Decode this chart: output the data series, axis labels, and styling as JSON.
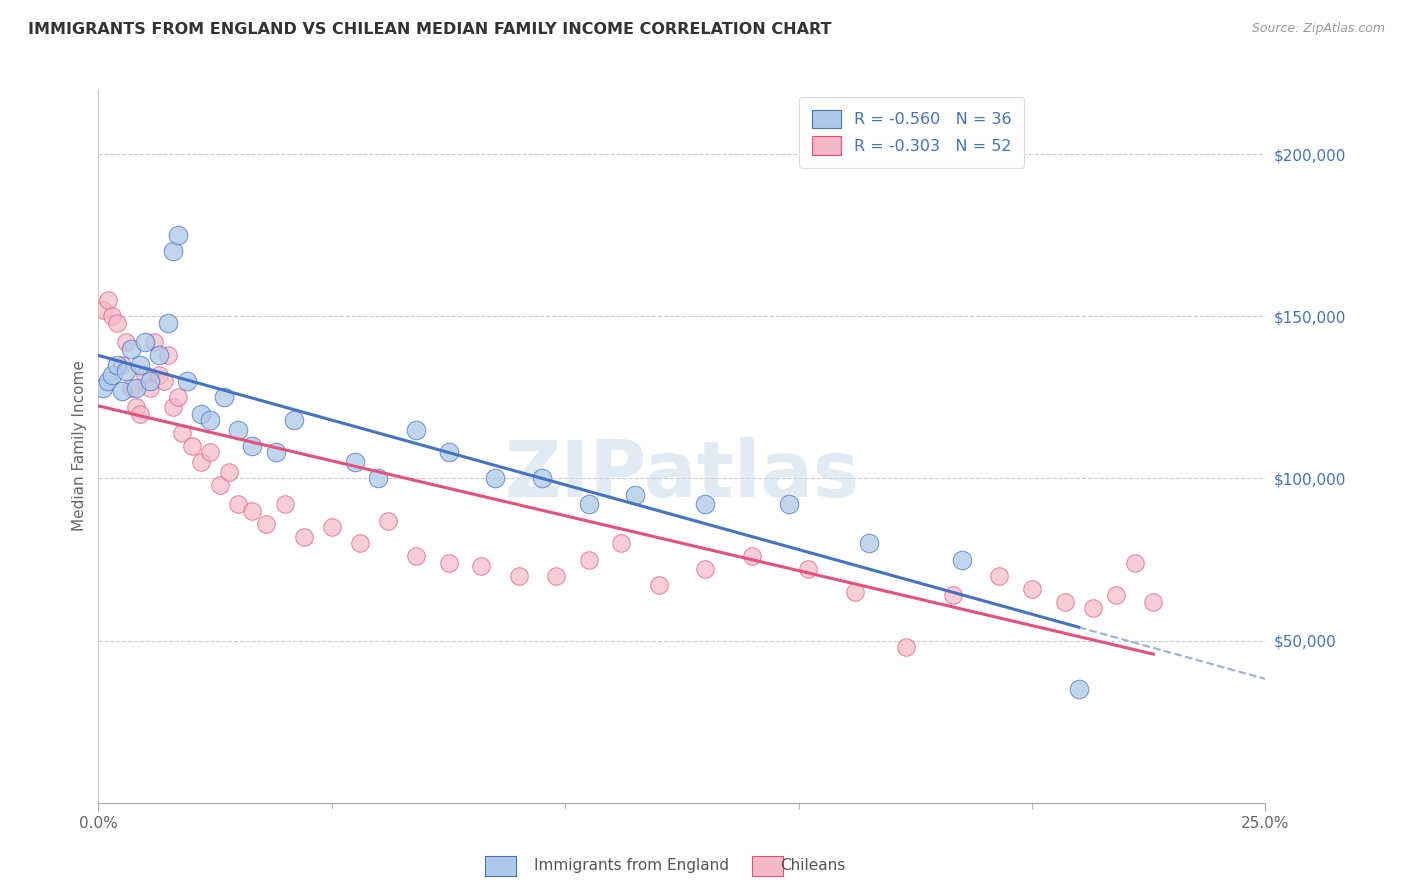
{
  "title": "IMMIGRANTS FROM ENGLAND VS CHILEAN MEDIAN FAMILY INCOME CORRELATION CHART",
  "source": "Source: ZipAtlas.com",
  "ylabel": "Median Family Income",
  "y_tick_labels": [
    "$50,000",
    "$100,000",
    "$150,000",
    "$200,000"
  ],
  "y_tick_values": [
    50000,
    100000,
    150000,
    200000
  ],
  "xlim": [
    0.0,
    0.25
  ],
  "ylim": [
    0,
    220000
  ],
  "legend_line1": "R = -0.560   N = 36",
  "legend_line2": "R = -0.303   N = 52",
  "color_england": "#adc8e8",
  "color_chilean": "#f5b8c8",
  "line_color_england": "#4472c4",
  "line_color_chilean": "#e8507a",
  "watermark": "ZIPatlas",
  "england_x": [
    0.001,
    0.002,
    0.003,
    0.004,
    0.005,
    0.006,
    0.007,
    0.008,
    0.009,
    0.01,
    0.011,
    0.013,
    0.015,
    0.016,
    0.017,
    0.019,
    0.022,
    0.024,
    0.027,
    0.03,
    0.033,
    0.038,
    0.042,
    0.055,
    0.06,
    0.068,
    0.075,
    0.085,
    0.095,
    0.105,
    0.115,
    0.13,
    0.148,
    0.165,
    0.185,
    0.21
  ],
  "england_y": [
    128000,
    130000,
    132000,
    135000,
    127000,
    133000,
    140000,
    128000,
    135000,
    142000,
    130000,
    138000,
    148000,
    170000,
    175000,
    130000,
    120000,
    118000,
    125000,
    115000,
    110000,
    108000,
    118000,
    105000,
    100000,
    115000,
    108000,
    100000,
    100000,
    92000,
    95000,
    92000,
    92000,
    80000,
    75000,
    35000
  ],
  "chilean_x": [
    0.001,
    0.002,
    0.003,
    0.004,
    0.005,
    0.006,
    0.007,
    0.008,
    0.009,
    0.01,
    0.011,
    0.012,
    0.013,
    0.014,
    0.015,
    0.016,
    0.017,
    0.018,
    0.02,
    0.022,
    0.024,
    0.026,
    0.028,
    0.03,
    0.033,
    0.036,
    0.04,
    0.044,
    0.05,
    0.056,
    0.062,
    0.068,
    0.075,
    0.082,
    0.09,
    0.098,
    0.105,
    0.112,
    0.12,
    0.13,
    0.14,
    0.152,
    0.162,
    0.173,
    0.183,
    0.193,
    0.2,
    0.207,
    0.213,
    0.218,
    0.222,
    0.226
  ],
  "chilean_y": [
    152000,
    155000,
    150000,
    148000,
    135000,
    142000,
    128000,
    122000,
    120000,
    132000,
    128000,
    142000,
    132000,
    130000,
    138000,
    122000,
    125000,
    114000,
    110000,
    105000,
    108000,
    98000,
    102000,
    92000,
    90000,
    86000,
    92000,
    82000,
    85000,
    80000,
    87000,
    76000,
    74000,
    73000,
    70000,
    70000,
    75000,
    80000,
    67000,
    72000,
    76000,
    72000,
    65000,
    48000,
    64000,
    70000,
    66000,
    62000,
    60000,
    64000,
    74000,
    62000
  ]
}
